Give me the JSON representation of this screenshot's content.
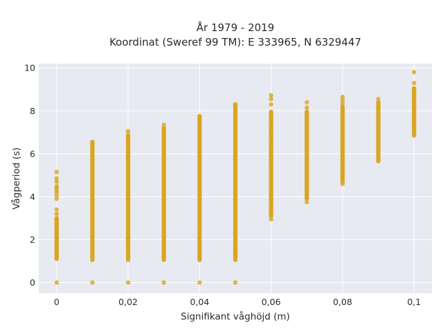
{
  "chart_data": {
    "type": "scatter",
    "title": "År 1979 - 2019",
    "subtitle": "Koordinat (Sweref 99 TM): E 333965, N 6329447",
    "xlabel": "Signifikant våghöjd (m)",
    "ylabel": "Vågperiod (s)",
    "xlim": [
      -0.005,
      0.105
    ],
    "ylim": [
      -0.5,
      10.2
    ],
    "x_ticks": [
      0,
      0.02,
      0.04,
      0.06,
      0.08,
      0.1
    ],
    "x_tick_labels": [
      "0",
      "0,02",
      "0,04",
      "0,06",
      "0,08",
      "0,1"
    ],
    "y_ticks": [
      0,
      2,
      4,
      6,
      8,
      10
    ],
    "y_tick_labels": [
      "0",
      "2",
      "4",
      "6",
      "8",
      "10"
    ],
    "grid": true,
    "legend": "none",
    "marker_color": "#DAA520",
    "background_color": "#E8EAF1",
    "columns": [
      {
        "x": 0,
        "dense_min": 1.1,
        "dense_max": 3.0,
        "sparse": [
          0,
          3.2,
          3.4,
          3.9,
          4.05,
          4.2,
          4.3,
          4.4,
          4.5,
          4.7,
          4.85,
          5.15
        ]
      },
      {
        "x": 0.01,
        "dense_min": 1.05,
        "dense_max": 6.55,
        "sparse": [
          0
        ]
      },
      {
        "x": 0.02,
        "dense_min": 1.05,
        "dense_max": 6.8,
        "sparse": [
          0,
          6.9,
          7.05
        ]
      },
      {
        "x": 0.03,
        "dense_min": 1.05,
        "dense_max": 7.2,
        "sparse": [
          0,
          7.35
        ]
      },
      {
        "x": 0.04,
        "dense_min": 1.05,
        "dense_max": 7.75,
        "sparse": [
          0
        ]
      },
      {
        "x": 0.05,
        "dense_min": 1.05,
        "dense_max": 8.3,
        "sparse": [
          0,
          1.3,
          1.5,
          1.75,
          2.0
        ]
      },
      {
        "x": 0.06,
        "dense_min": 3.1,
        "dense_max": 7.95,
        "sparse": [
          2.95,
          8.3,
          8.55,
          8.72
        ]
      },
      {
        "x": 0.07,
        "dense_min": 3.9,
        "dense_max": 7.95,
        "sparse": [
          3.75,
          8.15,
          8.4
        ]
      },
      {
        "x": 0.08,
        "dense_min": 4.7,
        "dense_max": 8.2,
        "sparse": [
          4.6,
          8.35,
          8.5,
          8.65
        ]
      },
      {
        "x": 0.09,
        "dense_min": 5.7,
        "dense_max": 8.4,
        "sparse": [
          5.65,
          8.55
        ]
      },
      {
        "x": 0.1,
        "dense_min": 6.9,
        "dense_max": 9.05,
        "sparse": [
          6.85,
          9.3,
          9.8
        ]
      }
    ]
  }
}
